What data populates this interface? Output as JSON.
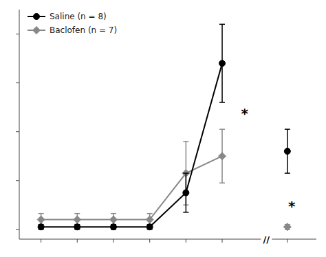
{
  "chart_data": {
    "type": "line",
    "series": [
      {
        "name": "Saline (n = 8)",
        "color": "#000000",
        "marker": "circle",
        "line_style": "solid",
        "x": [
          1,
          2,
          3,
          4,
          5,
          6
        ],
        "values": [
          1,
          1,
          1,
          1,
          15,
          68
        ],
        "yerr": [
          1,
          1,
          1,
          1,
          8,
          16
        ]
      },
      {
        "name": "Baclofen (n = 7)",
        "color": "#888888",
        "marker": "diamond",
        "line_style": "solid",
        "x": [
          1,
          2,
          3,
          4,
          5,
          6
        ],
        "values": [
          4,
          4,
          4,
          4,
          23,
          30
        ],
        "yerr": [
          2.5,
          2.5,
          2.5,
          2.5,
          13,
          11
        ]
      },
      {
        "name": "Saline (n = 8)",
        "color": "#000000",
        "marker": "circle",
        "line_style": "none",
        "x": [
          7.8
        ],
        "values": [
          32
        ],
        "yerr": [
          9
        ]
      },
      {
        "name": "Baclofen (n = 7)",
        "color": "#888888",
        "marker": "diamond",
        "line_style": "none",
        "x": [
          7.8
        ],
        "values": [
          1
        ],
        "yerr": [
          1
        ]
      }
    ],
    "annotations": [
      {
        "text": "*",
        "x": 6.62,
        "y": 48
      },
      {
        "text": "*",
        "x": 7.92,
        "y": 10
      },
      {
        "text": "//",
        "x": 7.22,
        "y": -4
      }
    ],
    "xlim": [
      0.4,
      8.6
    ],
    "xticks": [
      1,
      2,
      3,
      4,
      5,
      6,
      7.8
    ],
    "ylim": [
      -4,
      90
    ],
    "yticks": [
      0,
      20,
      40,
      60,
      80
    ],
    "tick_labels": false,
    "grid": false,
    "legend": "upper left"
  }
}
